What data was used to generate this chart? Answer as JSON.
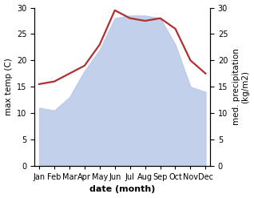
{
  "months": [
    "Jan",
    "Feb",
    "Mar",
    "Apr",
    "May",
    "Jun",
    "Jul",
    "Aug",
    "Sep",
    "Oct",
    "Nov",
    "Dec"
  ],
  "x": [
    0,
    1,
    2,
    3,
    4,
    5,
    6,
    7,
    8,
    9,
    10,
    11
  ],
  "max_temp": [
    15.5,
    16.0,
    17.5,
    19.0,
    23.0,
    29.5,
    28.0,
    27.5,
    28.0,
    26.0,
    20.0,
    17.5
  ],
  "precipitation": [
    11.0,
    10.5,
    13.0,
    18.0,
    22.0,
    28.0,
    28.5,
    28.5,
    28.0,
    23.0,
    15.0,
    14.0
  ],
  "temp_color": "#b03030",
  "precip_fill_color": "#b8c8e8",
  "precip_fill_alpha": 0.85,
  "xlabel": "date (month)",
  "ylabel_left": "max temp (C)",
  "ylabel_right": "med. precipitation\n(kg/m2)",
  "ylim_left": [
    0,
    30
  ],
  "ylim_right": [
    0,
    30
  ],
  "yticks_left": [
    0,
    5,
    10,
    15,
    20,
    25,
    30
  ],
  "yticks_right": [
    0,
    5,
    10,
    15,
    20,
    25,
    30
  ],
  "bg_color": "#ffffff",
  "temp_linewidth": 1.6,
  "xlabel_fontsize": 8,
  "ylabel_fontsize": 7.5,
  "tick_fontsize": 7
}
